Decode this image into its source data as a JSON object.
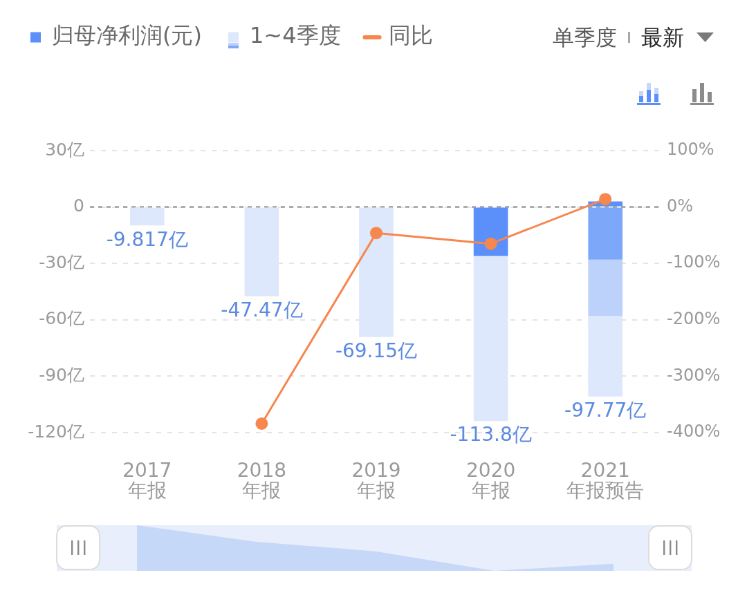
{
  "chart_data": {
    "type": "bar",
    "stacked": true,
    "categories": [
      "2017\n年报",
      "2018\n年报",
      "2019\n年报",
      "2020\n年报",
      "2021\n年报预告"
    ],
    "series": [
      {
        "name": "归母净利润(元)",
        "color": "#5b8ff9",
        "values": [
          null,
          null,
          null,
          -26.0,
          3.0
        ]
      },
      {
        "color": "#7da8fa",
        "values": [
          null,
          null,
          null,
          null,
          -28.0
        ]
      },
      {
        "color": "#bdd2fb",
        "values": [
          null,
          null,
          null,
          null,
          -30.0
        ]
      },
      {
        "name": "1~4季度",
        "color": "#dde8fc",
        "values": [
          -9.817,
          -47.47,
          -69.15,
          -87.8,
          -42.77
        ]
      },
      {
        "name": "同比",
        "type": "line",
        "axis": "y2",
        "color": "#f5874f",
        "values": [
          null,
          -384,
          -46,
          -65,
          14
        ]
      }
    ],
    "totals": [
      "-9.817亿",
      "-47.47亿",
      "-69.15亿",
      "-113.8亿",
      "-97.77亿"
    ],
    "ylim": [
      -120,
      30
    ],
    "yticks": [
      {
        "value": 30,
        "label": "30亿"
      },
      0,
      {
        "value": -30,
        "label": "-30亿"
      },
      {
        "value": -60,
        "label": "-60亿"
      },
      {
        "value": -90,
        "label": "-90亿"
      },
      {
        "value": -120,
        "label": "-120亿"
      }
    ],
    "y2lim": [
      -400,
      100
    ],
    "y2ticks": [
      {
        "value": 100,
        "label": "100%"
      },
      {
        "value": 0,
        "label": "0%"
      },
      {
        "value": -100,
        "label": "-100%"
      },
      {
        "value": -200,
        "label": "-200%"
      },
      {
        "value": -300,
        "label": "-300%"
      },
      {
        "value": -400,
        "label": "-400%"
      }
    ],
    "ref_lines": [
      {
        "axis": "y",
        "value": 0,
        "color": "#9c9c9c",
        "line_style": "dashed"
      }
    ],
    "grid": "y",
    "legend": "top left",
    "marker": "circle",
    "annotations": [
      "单季度",
      "最新"
    ]
  }
}
